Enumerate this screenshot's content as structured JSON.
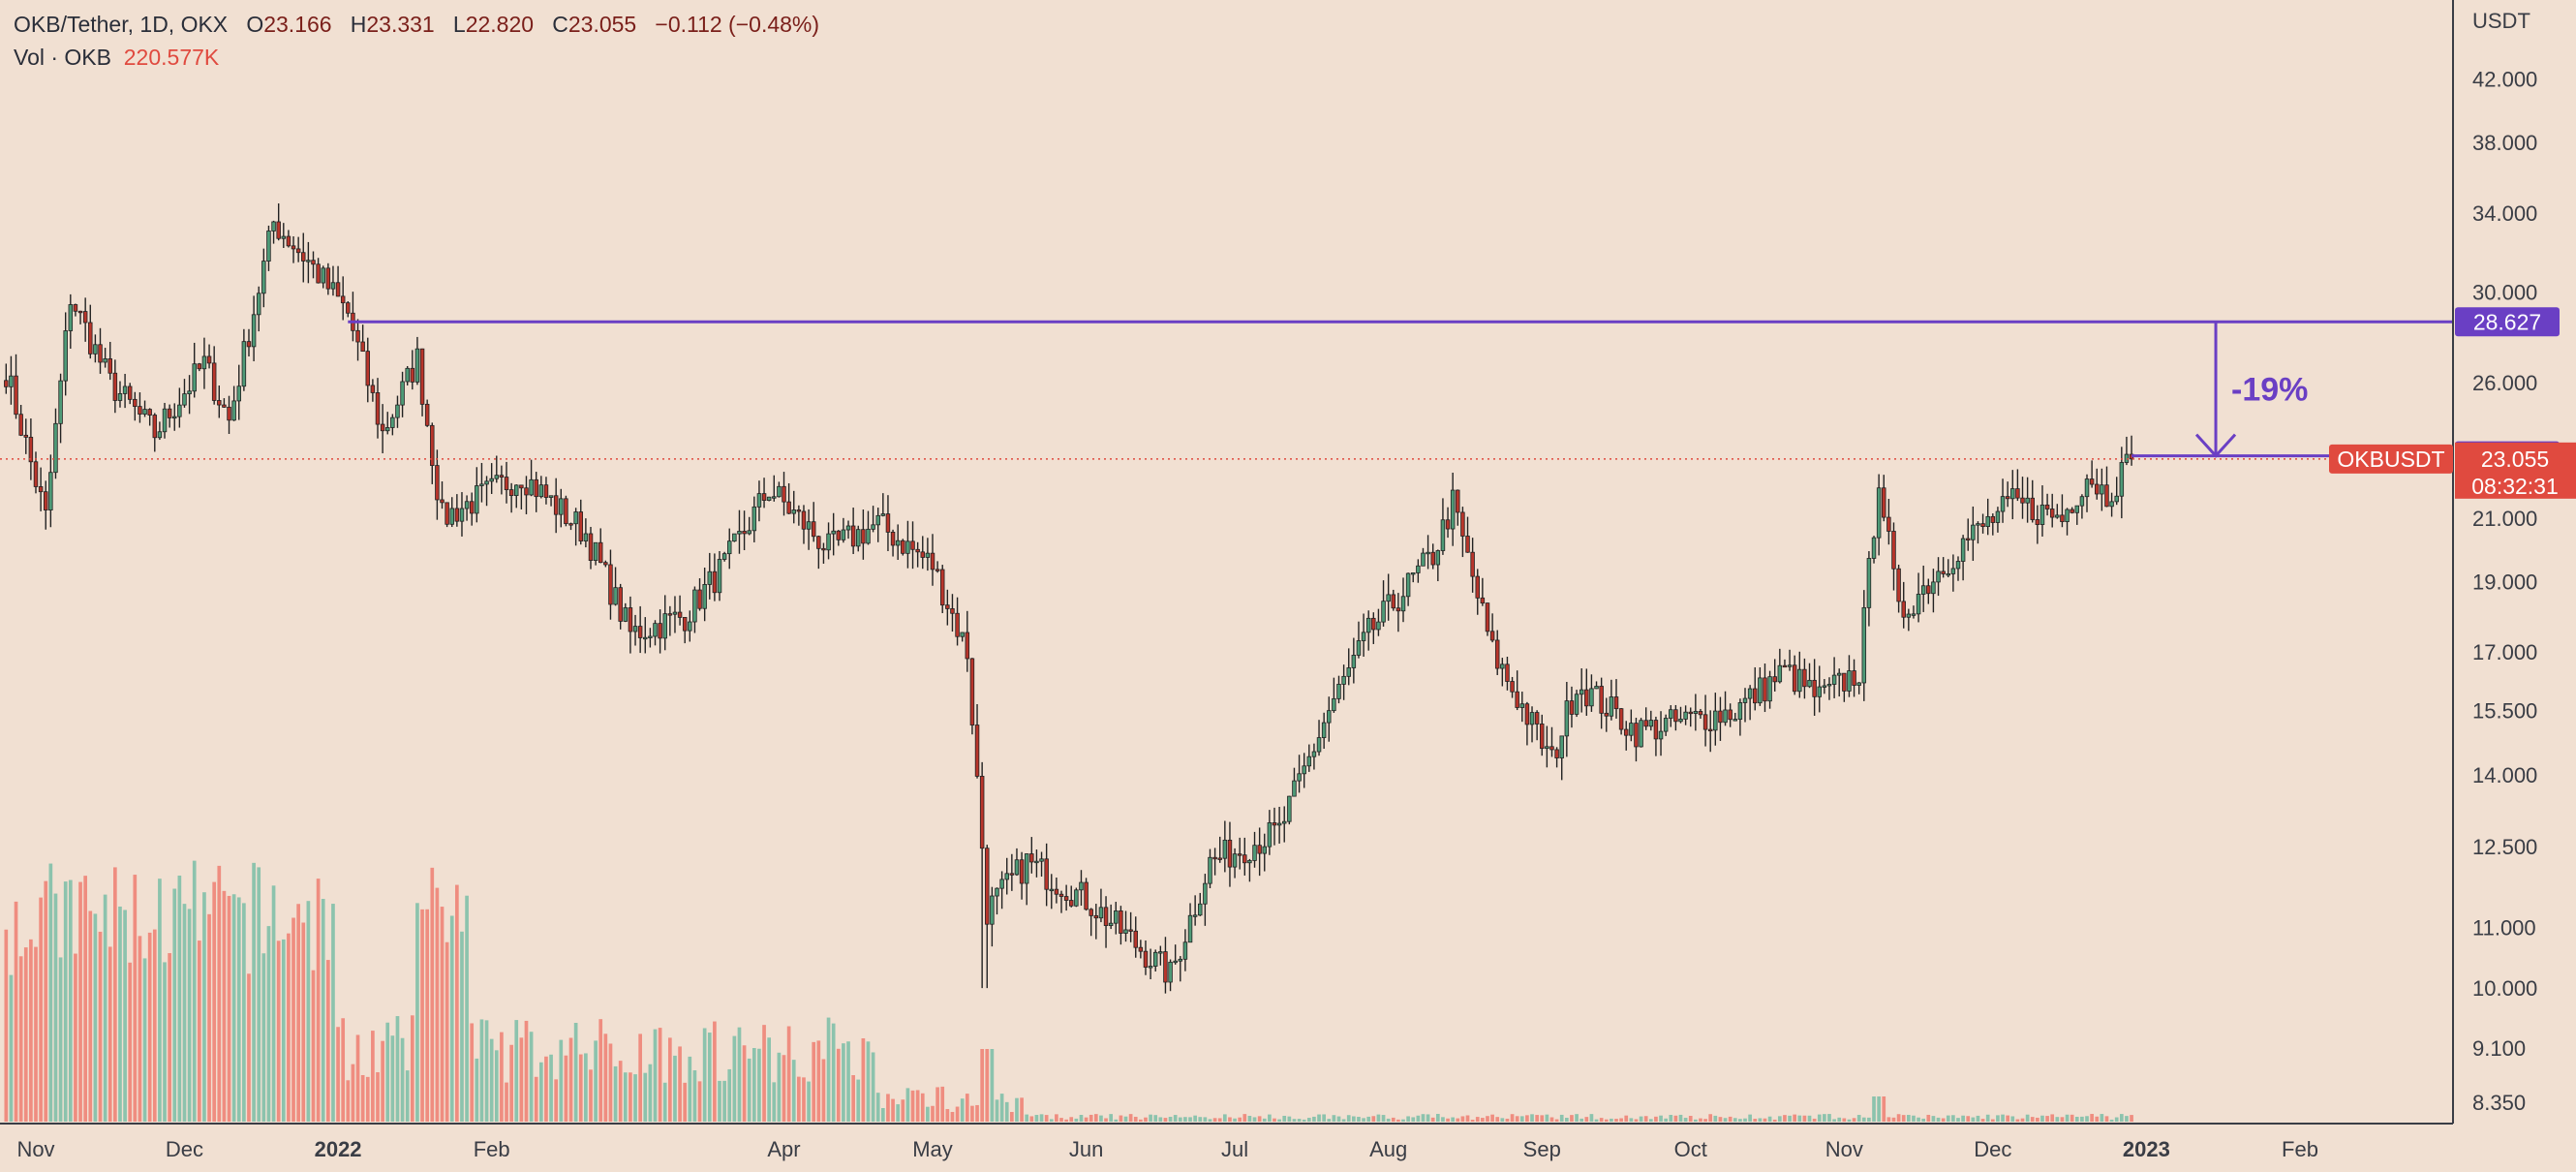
{
  "header": {
    "symbol": "OKB/Tether, 1D, OKX",
    "open_label": "O",
    "open": "23.166",
    "high_label": "H",
    "high": "23.331",
    "low_label": "L",
    "low": "22.820",
    "close_label": "C",
    "close": "23.055",
    "change": "−0.112 (−0.48%)",
    "vol_label": "Vol · OKB",
    "vol_value": "220.577K"
  },
  "colors": {
    "background": "#f1e0d2",
    "up": "#4e9a77",
    "down": "#b8352b",
    "wick": "#222222",
    "vol_up": "#8cc3ad",
    "vol_down": "#ef8d80",
    "level_line": "#6a3fc4",
    "current_price": "#e04a3f"
  },
  "chart_data": {
    "type": "candlestick",
    "title": "",
    "xlabel": "",
    "ylabel": "USDT",
    "y_scale": "log",
    "ylim": [
      8.0,
      48.0
    ],
    "x_ticks": [
      "Nov",
      "Dec",
      "2022",
      "Feb",
      "Apr",
      "May",
      "Jun",
      "Jul",
      "Aug",
      "Sep",
      "Oct",
      "Nov",
      "Dec",
      "2023",
      "Feb"
    ],
    "x_tick_dates": [
      "2021-11-01",
      "2021-12-01",
      "2022-01-01",
      "2022-02-01",
      "2022-04-01",
      "2022-05-01",
      "2022-06-01",
      "2022-07-01",
      "2022-08-01",
      "2022-09-01",
      "2022-10-01",
      "2022-11-01",
      "2022-12-01",
      "2023-01-01",
      "2023-02-01"
    ],
    "y_ticks": [
      "42.000",
      "38.000",
      "34.000",
      "30.000",
      "26.000",
      "21.000",
      "19.000",
      "17.000",
      "15.500",
      "14.000",
      "12.500",
      "11.000",
      "10.000",
      "9.100",
      "8.350"
    ],
    "price_series_keypoints": [
      {
        "date": "2021-10-26",
        "close": 26.5
      },
      {
        "date": "2021-11-03",
        "close": 21.0
      },
      {
        "date": "2021-11-08",
        "close": 29.8
      },
      {
        "date": "2021-11-16",
        "close": 26.0
      },
      {
        "date": "2021-11-25",
        "close": 24.0
      },
      {
        "date": "2021-12-05",
        "close": 26.8
      },
      {
        "date": "2021-12-10",
        "close": 24.5
      },
      {
        "date": "2021-12-19",
        "close": 33.5
      },
      {
        "date": "2021-12-26",
        "close": 31.5
      },
      {
        "date": "2022-01-03",
        "close": 29.0
      },
      {
        "date": "2022-01-10",
        "close": 24.0
      },
      {
        "date": "2022-01-17",
        "close": 27.0
      },
      {
        "date": "2022-01-22",
        "close": 21.0
      },
      {
        "date": "2022-02-07",
        "close": 22.5
      },
      {
        "date": "2022-02-20",
        "close": 20.5
      },
      {
        "date": "2022-03-01",
        "close": 17.5
      },
      {
        "date": "2022-03-12",
        "close": 18.0
      },
      {
        "date": "2022-03-20",
        "close": 19.5
      },
      {
        "date": "2022-03-29",
        "close": 22.0
      },
      {
        "date": "2022-04-10",
        "close": 20.0
      },
      {
        "date": "2022-04-20",
        "close": 20.8
      },
      {
        "date": "2022-05-01",
        "close": 19.5
      },
      {
        "date": "2022-05-08",
        "close": 17.0
      },
      {
        "date": "2022-05-12",
        "close": 11.3
      },
      {
        "date": "2022-05-20",
        "close": 12.2
      },
      {
        "date": "2022-06-01",
        "close": 11.5
      },
      {
        "date": "2022-06-18",
        "close": 10.2
      },
      {
        "date": "2022-06-26",
        "close": 12.2
      },
      {
        "date": "2022-07-10",
        "close": 12.8
      },
      {
        "date": "2022-07-20",
        "close": 15.5
      },
      {
        "date": "2022-07-28",
        "close": 17.5
      },
      {
        "date": "2022-08-10",
        "close": 19.8
      },
      {
        "date": "2022-08-14",
        "close": 21.5
      },
      {
        "date": "2022-08-22",
        "close": 17.0
      },
      {
        "date": "2022-09-03",
        "close": 14.3
      },
      {
        "date": "2022-09-08",
        "close": 16.2
      },
      {
        "date": "2022-09-20",
        "close": 15.0
      },
      {
        "date": "2022-10-10",
        "close": 15.5
      },
      {
        "date": "2022-10-20",
        "close": 16.5
      },
      {
        "date": "2022-10-27",
        "close": 15.8
      },
      {
        "date": "2022-11-04",
        "close": 16.5
      },
      {
        "date": "2022-11-08",
        "close": 22.5
      },
      {
        "date": "2022-11-12",
        "close": 18.0
      },
      {
        "date": "2022-11-25",
        "close": 20.2
      },
      {
        "date": "2022-12-05",
        "close": 21.5
      },
      {
        "date": "2022-12-15",
        "close": 21.0
      },
      {
        "date": "2022-12-20",
        "close": 22.5
      },
      {
        "date": "2022-12-24",
        "close": 21.8
      },
      {
        "date": "2022-12-29",
        "close": 23.06
      }
    ],
    "series": [
      {
        "name": "OKBUSDT",
        "last": 23.055
      }
    ],
    "volume_series": "Vol · OKB",
    "levels": [
      {
        "label": "28.627",
        "value": 28.627,
        "from": "2022-01-03",
        "to": "2023-01-15"
      },
      {
        "label": "23.167",
        "value": 23.167,
        "from": "2022-12-29",
        "to": "2023-01-21"
      }
    ],
    "annotations": [
      {
        "text": "-19%",
        "from_value": 28.627,
        "to_value": 23.167
      }
    ],
    "price_tags": {
      "level_high": "28.627",
      "level_low": "23.167",
      "symbol": "OKBUSDT",
      "last": "23.055",
      "countdown": "08:32:31"
    },
    "grid": false,
    "legend": "top-left"
  }
}
